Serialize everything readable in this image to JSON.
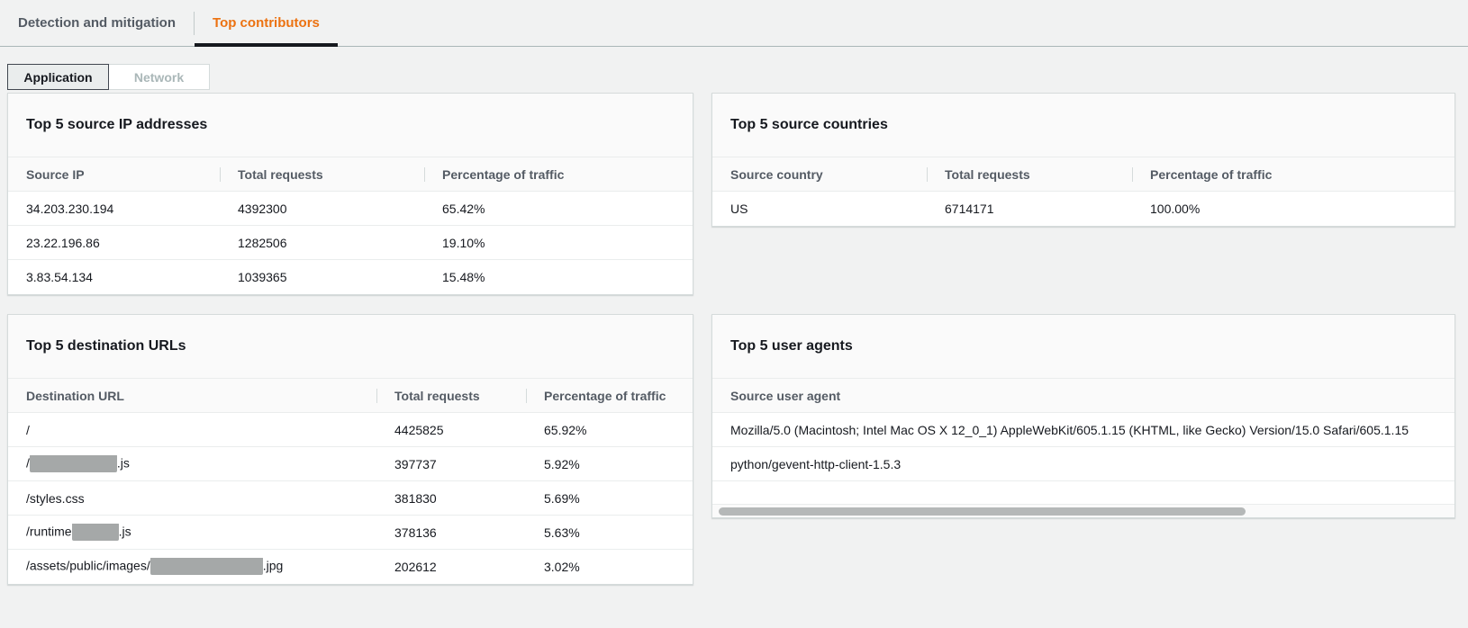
{
  "tabs": [
    {
      "label": "Detection and mitigation",
      "active": false
    },
    {
      "label": "Top contributors",
      "active": true
    }
  ],
  "view_toggle": [
    {
      "label": "Application",
      "active": true
    },
    {
      "label": "Network",
      "active": false
    }
  ],
  "colors": {
    "accent_orange": "#ec7211",
    "active_tab_underline": "#16191f",
    "page_background": "#f1f2f2"
  },
  "panels": {
    "source_ips": {
      "title": "Top 5 source IP addresses",
      "columns": [
        "Source IP",
        "Total requests",
        "Percentage of traffic"
      ],
      "rows": [
        [
          "34.203.230.194",
          "4392300",
          "65.42%"
        ],
        [
          "23.22.196.86",
          "1282506",
          "19.10%"
        ],
        [
          "3.83.54.134",
          "1039365",
          "15.48%"
        ]
      ]
    },
    "source_countries": {
      "title": "Top 5 source countries",
      "columns": [
        "Source country",
        "Total requests",
        "Percentage of traffic"
      ],
      "rows": [
        [
          "US",
          "6714171",
          "100.00%"
        ]
      ]
    },
    "destination_urls": {
      "title": "Top 5 destination URLs",
      "columns": [
        "Destination URL",
        "Total requests",
        "Percentage of traffic"
      ],
      "rows": [
        {
          "prefix": "/",
          "redacted": false,
          "suffix": "",
          "requests": "4425825",
          "pct": "65.92%"
        },
        {
          "prefix": "/",
          "redacted": true,
          "suffix": ".js",
          "requests": "397737",
          "pct": "5.92%"
        },
        {
          "prefix": "/styles.css",
          "redacted": false,
          "suffix": "",
          "requests": "381830",
          "pct": "5.69%"
        },
        {
          "prefix": "/runtime",
          "redacted": true,
          "suffix": ".js",
          "requests": "378136",
          "pct": "5.63%"
        },
        {
          "prefix": "/assets/public/images/",
          "redacted": true,
          "suffix": ".jpg",
          "requests": "202612",
          "pct": "3.02%"
        }
      ]
    },
    "user_agents": {
      "title": "Top 5 user agents",
      "columns": [
        "Source user agent"
      ],
      "rows": [
        "Mozilla/5.0 (Macintosh; Intel Mac OS X 12_0_1) AppleWebKit/605.1.15 (KHTML, like Gecko) Version/15.0 Safari/605.1.15",
        "python/gevent-http-client-1.5.3"
      ]
    }
  }
}
